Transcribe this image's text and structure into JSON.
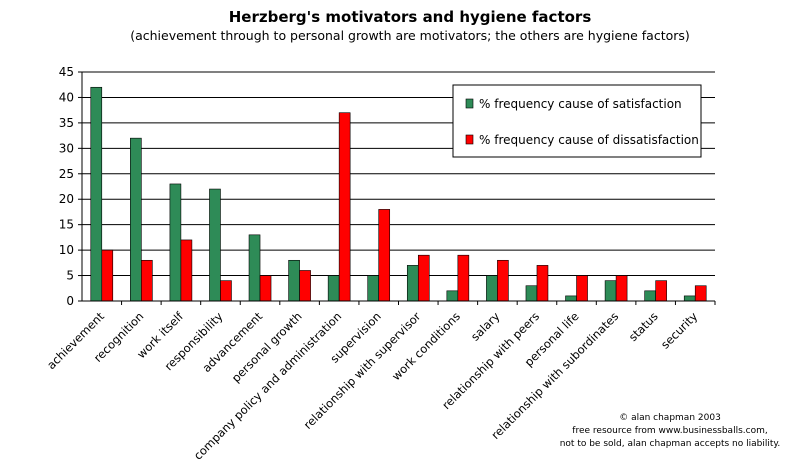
{
  "chart_data": {
    "type": "bar",
    "title": "Herzberg's motivators and hygiene factors",
    "subtitle": "(achievement through to personal growth are motivators; the others are hygiene factors)",
    "categories": [
      "achievement",
      "recognition",
      "work itself",
      "responsibility",
      "advancement",
      "personal growth",
      "company policy and administration",
      "supervision",
      "relationship with supervisor",
      "work conditions",
      "salary",
      "relationship with peers",
      "personal life",
      "relationship with subordinates",
      "status",
      "security"
    ],
    "series": [
      {
        "name": "% frequency cause of satisfaction",
        "color": "#2e8b57",
        "values": [
          42,
          32,
          23,
          22,
          13,
          8,
          5,
          5,
          7,
          2,
          5,
          3,
          1,
          4,
          2,
          1
        ]
      },
      {
        "name": "% frequency cause of dissatisfaction",
        "color": "#ff0000",
        "values": [
          10,
          8,
          12,
          4,
          5,
          6,
          37,
          18,
          9,
          9,
          8,
          7,
          5,
          5,
          4,
          3
        ]
      }
    ],
    "ylim": [
      0,
      45
    ],
    "yticks": [
      0,
      5,
      10,
      15,
      20,
      25,
      30,
      35,
      40,
      45
    ],
    "grid": true,
    "legend_position": "top-right"
  },
  "credits": [
    "© alan chapman 2003",
    "free resource from www.businessballs.com,",
    "not to be sold, alan chapman accepts no liability."
  ]
}
